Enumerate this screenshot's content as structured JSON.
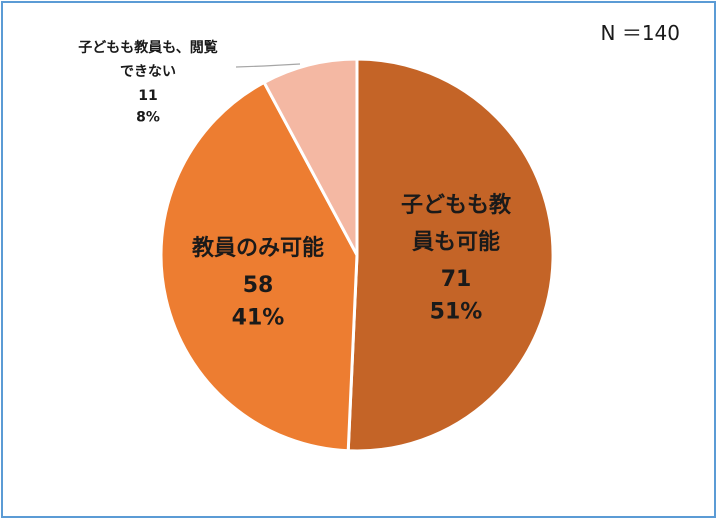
{
  "chart_data": {
    "type": "pie",
    "title": "",
    "sample_size_label": "N ＝140",
    "start_angle_deg": 0,
    "direction": "clockwise",
    "slices": [
      {
        "label_lines": [
          "子どもも教",
          "員も可能"
        ],
        "count": "71",
        "percent": "51%",
        "value": 71,
        "color": "#c46427"
      },
      {
        "label_lines": [
          "教員のみ可能"
        ],
        "count": "58",
        "percent": "41%",
        "value": 58,
        "color": "#ed7d31"
      },
      {
        "label_lines": [
          "子どもも教員も、閲覧",
          "できない"
        ],
        "count": "11",
        "percent": "8%",
        "value": 11,
        "color": "#f4b8a3"
      }
    ],
    "legend": "none",
    "slice_border_color": "#ffffff"
  }
}
